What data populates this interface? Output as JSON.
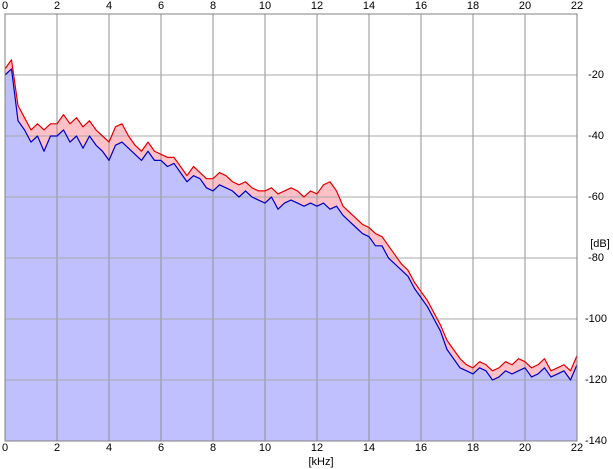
{
  "chart_data": {
    "type": "spectrum",
    "x_label": "[kHz]",
    "y_label": "[dB]",
    "x": [
      0,
      0.25,
      0.5,
      0.75,
      1,
      1.25,
      1.5,
      1.75,
      2,
      2.25,
      2.5,
      2.75,
      3,
      3.25,
      3.5,
      3.75,
      4,
      4.25,
      4.5,
      4.75,
      5,
      5.25,
      5.5,
      5.75,
      6,
      6.25,
      6.5,
      6.75,
      7,
      7.25,
      7.5,
      7.75,
      8,
      8.25,
      8.5,
      8.75,
      9,
      9.25,
      9.5,
      9.75,
      10,
      10.25,
      10.5,
      10.75,
      11,
      11.25,
      11.5,
      11.75,
      12,
      12.25,
      12.5,
      12.75,
      13,
      13.25,
      13.5,
      13.75,
      14,
      14.25,
      14.5,
      14.75,
      15,
      15.25,
      15.5,
      15.75,
      16,
      16.25,
      16.5,
      16.75,
      17,
      17.25,
      17.5,
      17.75,
      18,
      18.25,
      18.5,
      18.75,
      19,
      19.25,
      19.5,
      19.75,
      20,
      20.25,
      20.5,
      20.75,
      21,
      21.25,
      21.5,
      21.75,
      22
    ],
    "series": [
      {
        "color": "#e00000",
        "fill": "#ffc0c8",
        "values": [
          -18,
          -15,
          -30,
          -34,
          -38,
          -36,
          -38,
          -36,
          -36,
          -33,
          -36,
          -34,
          -37,
          -35,
          -38,
          -40,
          -42,
          -37,
          -36,
          -40,
          -43,
          -45,
          -42,
          -45,
          -46,
          -47,
          -47,
          -50,
          -53,
          -50,
          -52,
          -54,
          -54,
          -52,
          -53,
          -55,
          -56,
          -55,
          -57,
          -58,
          -58,
          -57,
          -59,
          -58,
          -57,
          -58,
          -60,
          -58,
          -59,
          -56,
          -55,
          -58,
          -63,
          -65,
          -67,
          -69,
          -70,
          -72,
          -73,
          -76,
          -79,
          -82,
          -84,
          -88,
          -91,
          -94,
          -98,
          -102,
          -107,
          -110,
          -113,
          -115,
          -116,
          -114,
          -115,
          -117,
          -116,
          -114,
          -115,
          -113,
          -114,
          -116,
          -115,
          -113,
          -117,
          -116,
          -115,
          -117,
          -112
        ]
      },
      {
        "color": "#0000c0",
        "fill": "#c0c0ff",
        "values": [
          -20,
          -18,
          -35,
          -38,
          -42,
          -40,
          -45,
          -40,
          -40,
          -38,
          -42,
          -40,
          -44,
          -40,
          -43,
          -45,
          -48,
          -43,
          -42,
          -44,
          -46,
          -48,
          -45,
          -48,
          -48,
          -50,
          -49,
          -52,
          -55,
          -53,
          -54,
          -57,
          -58,
          -56,
          -57,
          -58,
          -60,
          -58,
          -60,
          -61,
          -62,
          -60,
          -64,
          -62,
          -61,
          -62,
          -63,
          -62,
          -63,
          -62,
          -64,
          -63,
          -66,
          -68,
          -70,
          -72,
          -73,
          -76,
          -76,
          -80,
          -82,
          -84,
          -86,
          -90,
          -93,
          -96,
          -100,
          -104,
          -110,
          -113,
          -116,
          -117,
          -118,
          -116,
          -117,
          -120,
          -119,
          -117,
          -118,
          -117,
          -116,
          -119,
          -118,
          -116,
          -119,
          -118,
          -117,
          -120,
          -115
        ]
      }
    ],
    "xlim": [
      0,
      22
    ],
    "xticks": [
      0,
      2,
      4,
      6,
      8,
      10,
      12,
      14,
      16,
      18,
      20,
      22
    ],
    "ylim": [
      -140,
      0
    ],
    "yticks": [
      -140,
      -120,
      -100,
      -80,
      -60,
      -40,
      -20
    ],
    "grid": true
  }
}
